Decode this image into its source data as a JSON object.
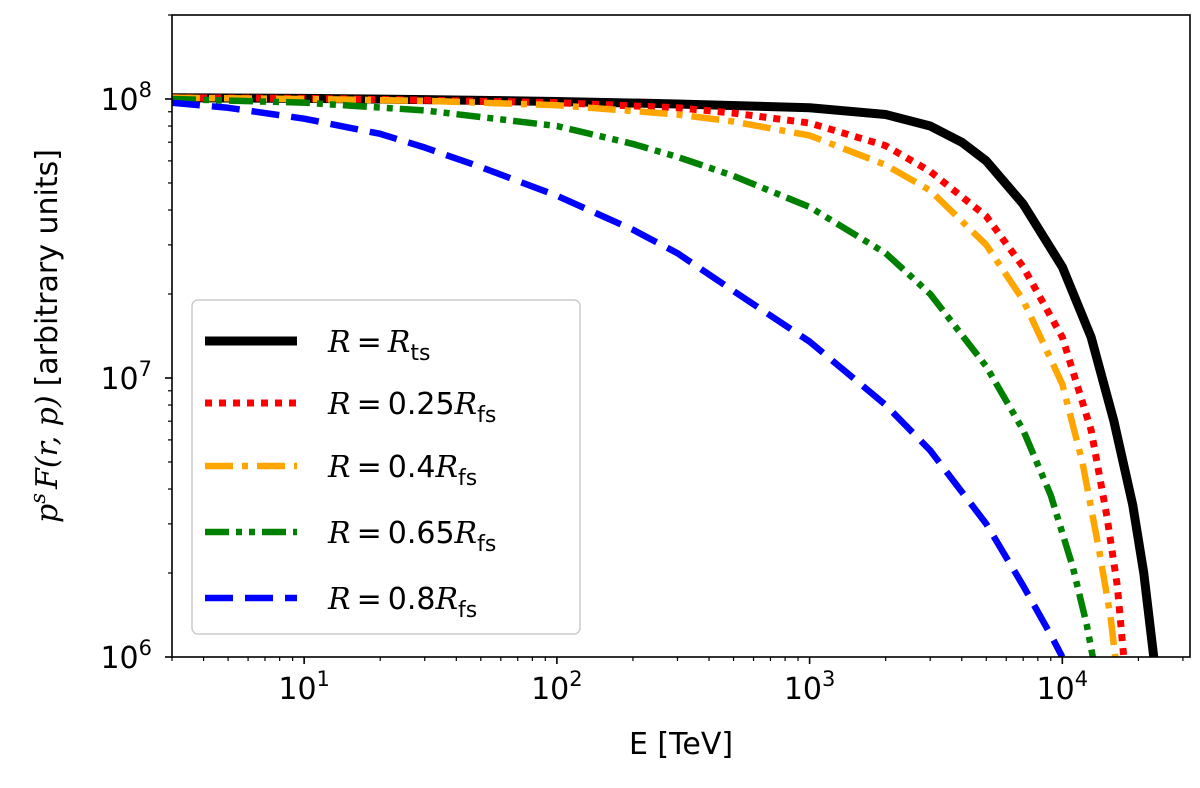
{
  "chart_data": {
    "type": "line",
    "title": "",
    "xlabel": "E [TeV]",
    "ylabel": {
      "p": "p",
      "s": "s",
      "F": "F",
      "args": "(r, p)",
      "units": "[arbitrary units]"
    },
    "xscale": "log",
    "yscale": "log",
    "xlim": [
      3,
      32000
    ],
    "ylim": [
      1000000,
      200000000
    ],
    "x_ticks": [
      {
        "value": 10,
        "base": "10",
        "exp": "1"
      },
      {
        "value": 100,
        "base": "10",
        "exp": "2"
      },
      {
        "value": 1000,
        "base": "10",
        "exp": "3"
      },
      {
        "value": 10000,
        "base": "10",
        "exp": "4"
      }
    ],
    "y_ticks": [
      {
        "value": 1000000,
        "base": "10",
        "exp": "6"
      },
      {
        "value": 10000000,
        "base": "10",
        "exp": "7"
      },
      {
        "value": 100000000,
        "base": "10",
        "exp": "8"
      }
    ],
    "legend_position": "lower-left",
    "series": [
      {
        "name": "R = R_ts",
        "label_coef": "",
        "label_sub": "ts",
        "color": "#000000",
        "style": "solid",
        "points": [
          [
            3,
            101000000
          ],
          [
            10,
            100500000
          ],
          [
            30,
            99500000
          ],
          [
            100,
            98000000
          ],
          [
            300,
            96000000
          ],
          [
            1000,
            93000000
          ],
          [
            2000,
            88000000
          ],
          [
            3000,
            80000000
          ],
          [
            4000,
            70000000
          ],
          [
            5000,
            60000000
          ],
          [
            7000,
            42000000
          ],
          [
            10000,
            25000000
          ],
          [
            13000,
            14000000
          ],
          [
            16000,
            7000000
          ],
          [
            19000,
            3500000
          ],
          [
            21000,
            2000000
          ],
          [
            23000,
            1000000
          ]
        ]
      },
      {
        "name": "R = 0.25R_fs",
        "label_coef": "0.25",
        "label_sub": "fs",
        "color": "#ff0000",
        "style": "dotted",
        "points": [
          [
            3,
            101000000
          ],
          [
            10,
            100500000
          ],
          [
            30,
            99000000
          ],
          [
            100,
            97000000
          ],
          [
            300,
            93000000
          ],
          [
            500,
            89000000
          ],
          [
            1000,
            82000000
          ],
          [
            2000,
            68000000
          ],
          [
            3000,
            55000000
          ],
          [
            5000,
            38000000
          ],
          [
            7000,
            25000000
          ],
          [
            10000,
            14000000
          ],
          [
            13000,
            6500000
          ],
          [
            15000,
            3200000
          ],
          [
            16500,
            1800000
          ],
          [
            17500,
            1000000
          ]
        ]
      },
      {
        "name": "R = 0.4R_fs",
        "label_coef": "0.4",
        "label_sub": "fs",
        "color": "#ffa500",
        "style": "dashdot",
        "points": [
          [
            3,
            101000000
          ],
          [
            10,
            100000000
          ],
          [
            30,
            98500000
          ],
          [
            100,
            95000000
          ],
          [
            300,
            88000000
          ],
          [
            500,
            83000000
          ],
          [
            1000,
            74000000
          ],
          [
            2000,
            58000000
          ],
          [
            3000,
            47000000
          ],
          [
            5000,
            30000000
          ],
          [
            7000,
            19000000
          ],
          [
            10000,
            9500000
          ],
          [
            12000,
            5000000
          ],
          [
            14000,
            2400000
          ],
          [
            15500,
            1400000
          ],
          [
            16200,
            1000000
          ]
        ]
      },
      {
        "name": "R = 0.65R_fs",
        "label_coef": "0.65",
        "label_sub": "fs",
        "color": "#008000",
        "style": "dashdotdot",
        "points": [
          [
            3,
            100000000
          ],
          [
            10,
            97000000
          ],
          [
            30,
            91000000
          ],
          [
            100,
            80000000
          ],
          [
            200,
            69000000
          ],
          [
            300,
            62000000
          ],
          [
            500,
            53000000
          ],
          [
            1000,
            41000000
          ],
          [
            2000,
            28000000
          ],
          [
            3000,
            20000000
          ],
          [
            5000,
            11000000
          ],
          [
            7000,
            6500000
          ],
          [
            9000,
            3800000
          ],
          [
            11000,
            2100000
          ],
          [
            12500,
            1300000
          ],
          [
            13200,
            1000000
          ]
        ]
      },
      {
        "name": "R = 0.8R_fs",
        "label_coef": "0.8",
        "label_sub": "fs",
        "color": "#0000ff",
        "style": "dashed",
        "points": [
          [
            3,
            97000000
          ],
          [
            5,
            93000000
          ],
          [
            10,
            85000000
          ],
          [
            20,
            75000000
          ],
          [
            30,
            67000000
          ],
          [
            50,
            57000000
          ],
          [
            100,
            45000000
          ],
          [
            200,
            34000000
          ],
          [
            300,
            28000000
          ],
          [
            500,
            20500000
          ],
          [
            1000,
            13500000
          ],
          [
            2000,
            8000000
          ],
          [
            3000,
            5500000
          ],
          [
            5000,
            3000000
          ],
          [
            7000,
            1800000
          ],
          [
            9000,
            1200000
          ],
          [
            10000,
            1000000
          ]
        ]
      }
    ]
  }
}
